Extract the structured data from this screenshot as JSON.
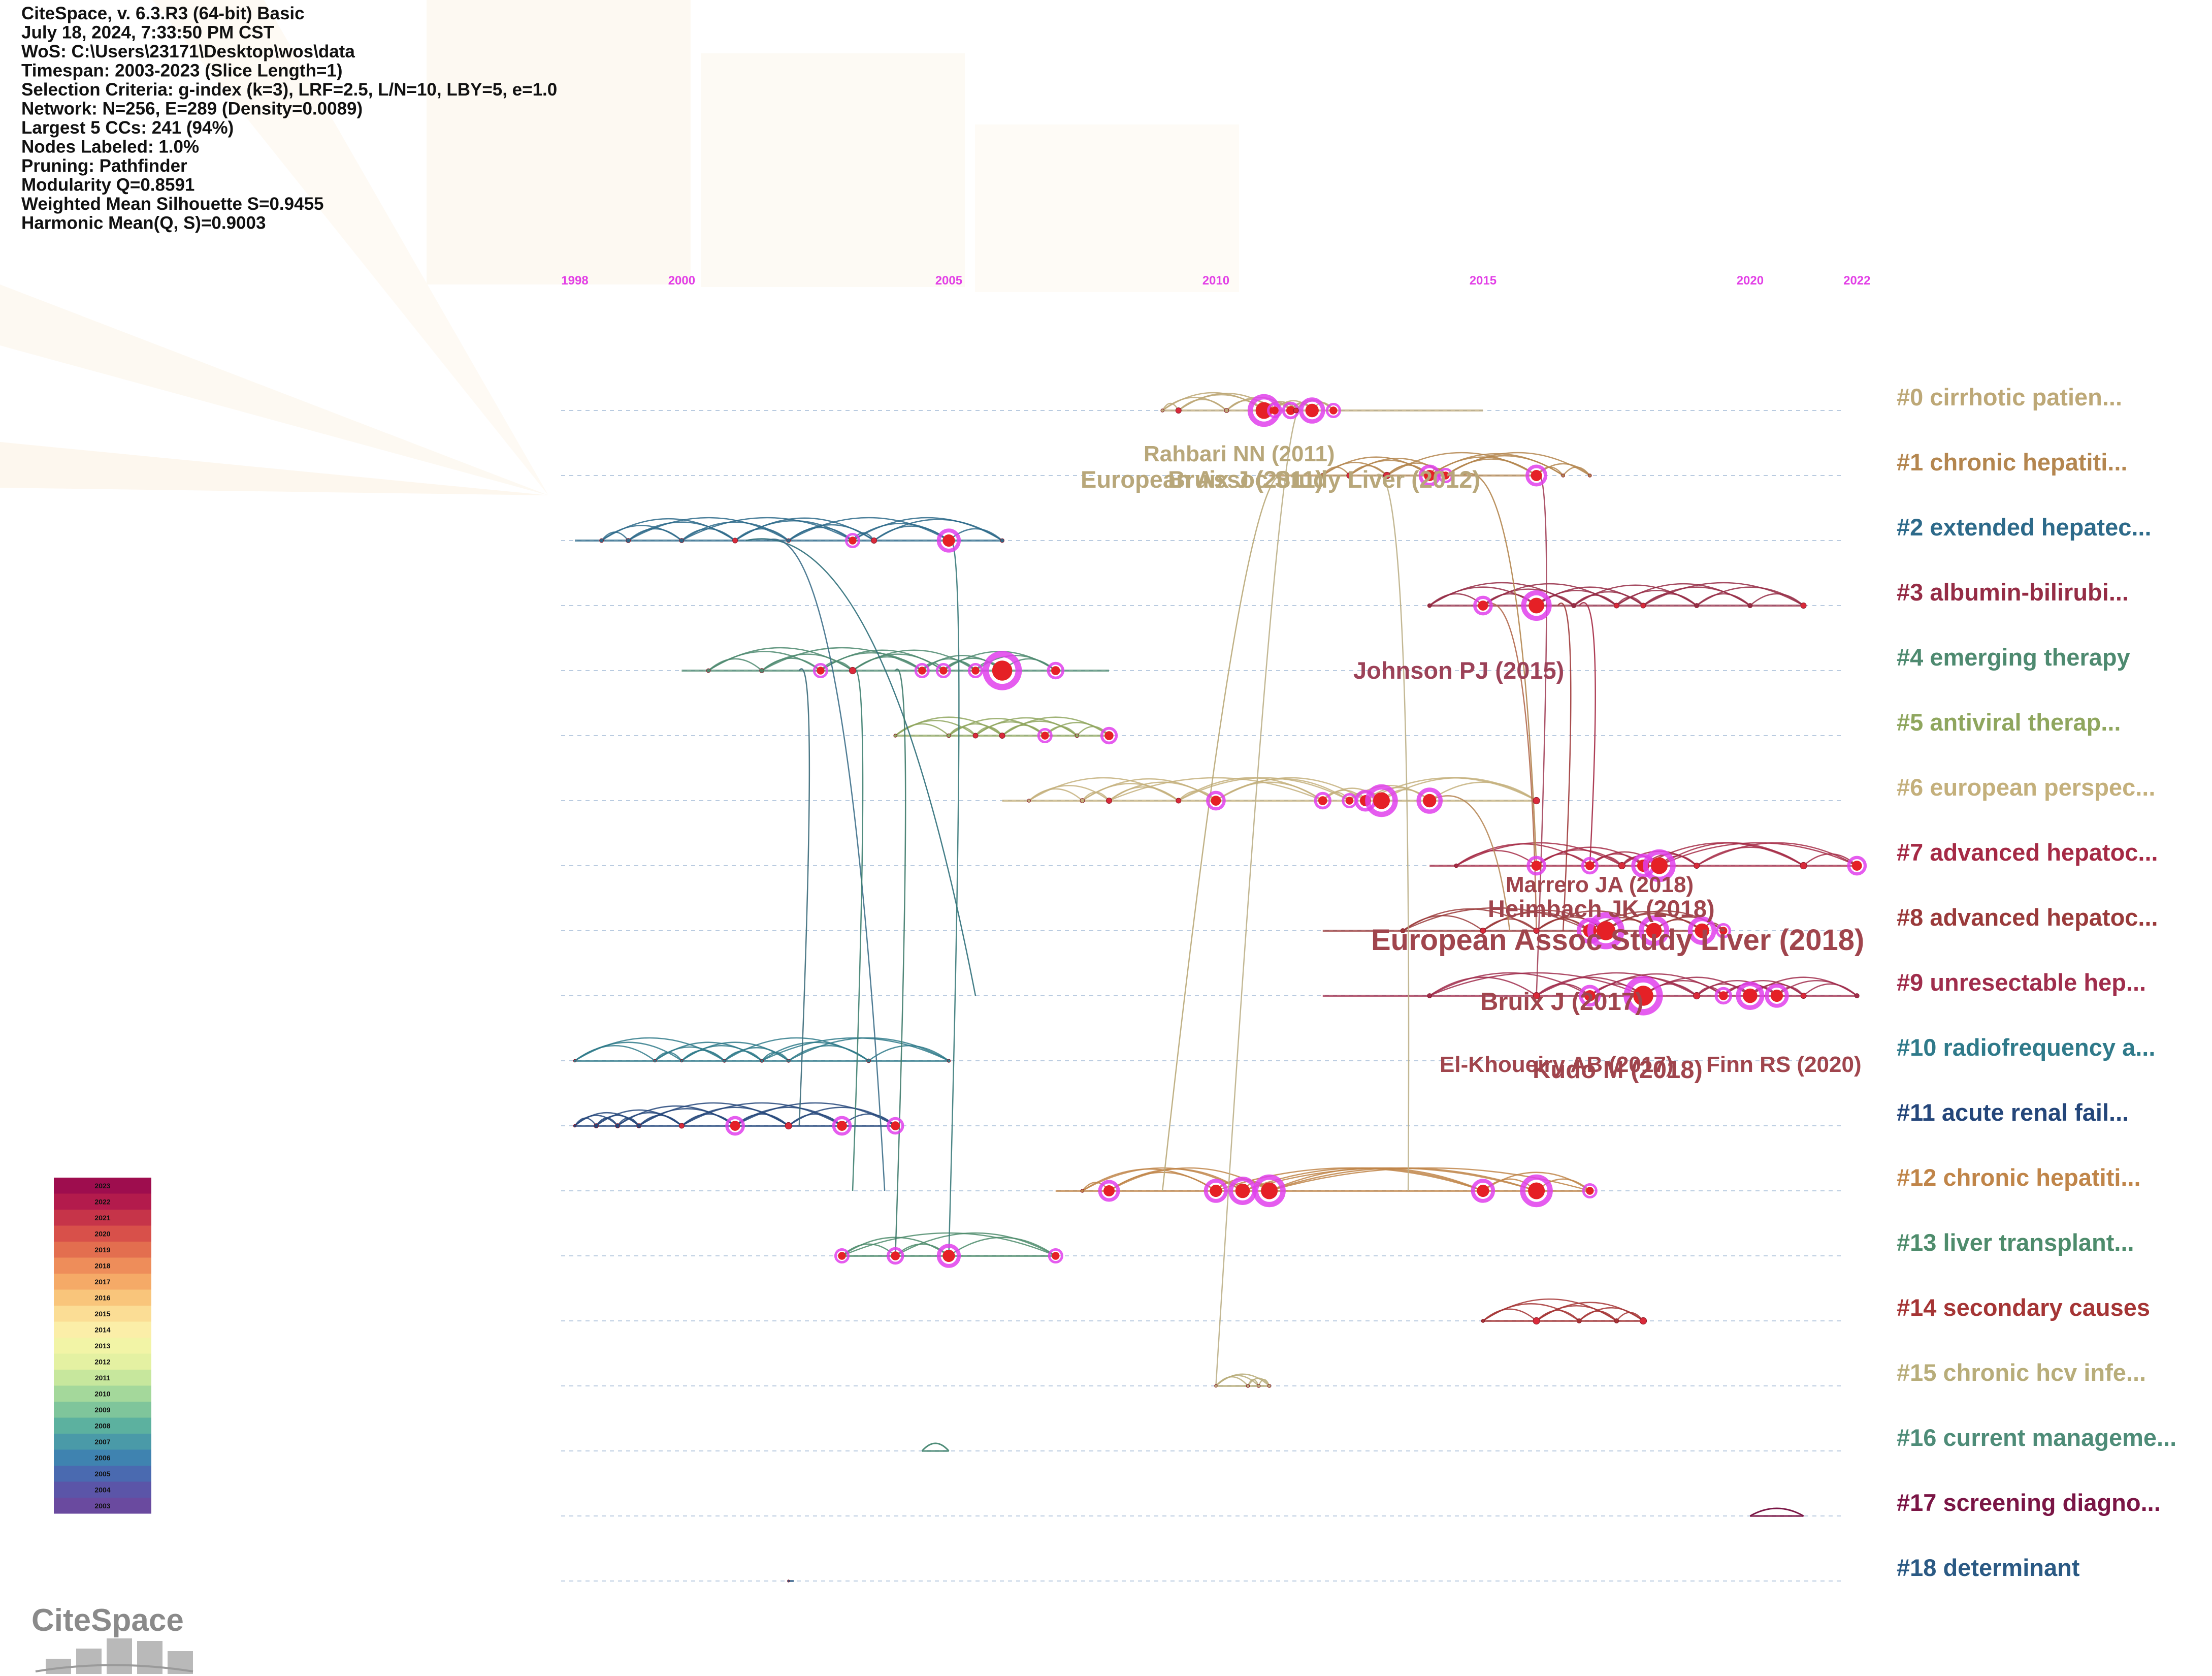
{
  "software_info": [
    "CiteSpace, v. 6.3.R3 (64-bit) Basic",
    "July 18, 2024, 7:33:50 PM CST",
    "WoS: C:\\Users\\23171\\Desktop\\wos\\data",
    "Timespan: 2003-2023 (Slice Length=1)",
    "Selection Criteria: g-index (k=3), LRF=2.5, L/N=10, LBY=5, e=1.0",
    "Network: N=256, E=289 (Density=0.0089)",
    "Largest 5 CCs: 241 (94%)",
    "Nodes Labeled: 1.0%",
    "Pruning: Pathfinder",
    "Modularity Q=0.8591",
    "Weighted Mean Silhouette S=0.9455",
    "Harmonic Mean(Q, S)=0.9003"
  ],
  "logo_text": "CiteSpace",
  "chart_data": {
    "type": "timeline",
    "x_axis": {
      "ticks": [
        1998,
        2000,
        2005,
        2010,
        2015,
        2020,
        2022
      ],
      "range": [
        1998,
        2022
      ]
    },
    "clusters": [
      {
        "label": "#0 cirrhotic patien...",
        "color": "#bda877",
        "span": [
          2009,
          2015
        ],
        "nodes": [
          [
            2009,
            6
          ],
          [
            2009.3,
            10
          ],
          [
            2010.2,
            8
          ],
          [
            2010.9,
            30
          ],
          [
            2011.1,
            14
          ],
          [
            2011.4,
            16
          ],
          [
            2011.5,
            9
          ],
          [
            2011.8,
            24
          ],
          [
            2012.2,
            14
          ]
        ]
      },
      {
        "label": "#1 chronic hepatiti...",
        "color": "#b4864f",
        "span": [
          2011,
          2016
        ],
        "nodes": [
          [
            2012,
            8
          ],
          [
            2012.5,
            10
          ],
          [
            2013.2,
            12
          ],
          [
            2014,
            20
          ],
          [
            2014.3,
            14
          ],
          [
            2016,
            20
          ],
          [
            2016.5,
            6
          ],
          [
            2017,
            6
          ]
        ]
      },
      {
        "label": "#2 extended hepatec...",
        "color": "#2d6a8a",
        "span": [
          1998,
          2006
        ],
        "nodes": [
          [
            1998.5,
            7
          ],
          [
            1999,
            8
          ],
          [
            2000,
            8
          ],
          [
            2001,
            9
          ],
          [
            2002,
            7
          ],
          [
            2003.2,
            14
          ],
          [
            2003.6,
            10
          ],
          [
            2005,
            22
          ],
          [
            2006,
            7
          ]
        ]
      },
      {
        "label": "#3 albumin-bilirubi...",
        "color": "#952c45",
        "span": [
          2014,
          2021
        ],
        "nodes": [
          [
            2014,
            7
          ],
          [
            2015,
            18
          ],
          [
            2016,
            28
          ],
          [
            2016.7,
            8
          ],
          [
            2017.5,
            9
          ],
          [
            2018,
            9
          ],
          [
            2019,
            8
          ],
          [
            2020,
            8
          ],
          [
            2021,
            10
          ]
        ]
      },
      {
        "label": "#4 emerging therapy",
        "color": "#4e8a70",
        "span": [
          2000,
          2008
        ],
        "nodes": [
          [
            2000.5,
            7
          ],
          [
            2001.5,
            8
          ],
          [
            2002.6,
            14
          ],
          [
            2003.2,
            12
          ],
          [
            2004.5,
            14
          ],
          [
            2004.9,
            14
          ],
          [
            2005.5,
            14
          ],
          [
            2006,
            36
          ],
          [
            2007,
            16
          ]
        ]
      },
      {
        "label": "#5 antiviral therap...",
        "color": "#8fa65e",
        "span": [
          2004,
          2008
        ],
        "nodes": [
          [
            2004,
            6
          ],
          [
            2005,
            7
          ],
          [
            2005.5,
            9
          ],
          [
            2006,
            10
          ],
          [
            2006.8,
            14
          ],
          [
            2007.4,
            7
          ],
          [
            2008,
            16
          ]
        ]
      },
      {
        "label": "#6 european perspec...",
        "color": "#c4b07c",
        "span": [
          2006,
          2016
        ],
        "nodes": [
          [
            2006.5,
            6
          ],
          [
            2007.5,
            8
          ],
          [
            2008,
            10
          ],
          [
            2009.3,
            9
          ],
          [
            2010,
            18
          ],
          [
            2012,
            16
          ],
          [
            2012.5,
            14
          ],
          [
            2012.8,
            20
          ],
          [
            2013.1,
            30
          ],
          [
            2014,
            24
          ],
          [
            2016,
            12
          ]
        ]
      },
      {
        "label": "#7 advanced hepatoc...",
        "color": "#a52a45",
        "span": [
          2014,
          2022
        ],
        "nodes": [
          [
            2014.5,
            7
          ],
          [
            2016,
            18
          ],
          [
            2017,
            16
          ],
          [
            2017.6,
            12
          ],
          [
            2018,
            22
          ],
          [
            2018.3,
            30
          ],
          [
            2019,
            10
          ],
          [
            2021,
            12
          ],
          [
            2022,
            18
          ]
        ]
      },
      {
        "label": "#8 advanced hepatoc...",
        "color": "#9a3a3a",
        "span": [
          2012,
          2019
        ],
        "nodes": [
          [
            2013.5,
            8
          ],
          [
            2015,
            10
          ],
          [
            2016,
            10
          ],
          [
            2017,
            24
          ],
          [
            2017.3,
            34
          ],
          [
            2018.2,
            28
          ],
          [
            2019.1,
            26
          ],
          [
            2019.5,
            14
          ]
        ]
      },
      {
        "label": "#9 unresectable hep...",
        "color": "#a02d4c",
        "span": [
          2012,
          2022
        ],
        "nodes": [
          [
            2014,
            8
          ],
          [
            2016,
            12
          ],
          [
            2017,
            20
          ],
          [
            2018,
            36
          ],
          [
            2019,
            12
          ],
          [
            2019.5,
            16
          ],
          [
            2020,
            26
          ],
          [
            2020.5,
            22
          ],
          [
            2021,
            10
          ],
          [
            2022,
            8
          ]
        ]
      },
      {
        "label": "#10 radiofrequency a...",
        "color": "#2f7a8a",
        "span": [
          1998,
          2005
        ],
        "nodes": [
          [
            1998,
            5
          ],
          [
            1999.5,
            5
          ],
          [
            2000,
            5
          ],
          [
            2000.8,
            6
          ],
          [
            2001.5,
            6
          ],
          [
            2002,
            6
          ],
          [
            2003.5,
            7
          ],
          [
            2005,
            6
          ]
        ]
      },
      {
        "label": "#11 acute renal fail...",
        "color": "#24467a",
        "span": [
          1998,
          2004
        ],
        "nodes": [
          [
            1998,
            5
          ],
          [
            1998.4,
            8
          ],
          [
            1998.8,
            8
          ],
          [
            1999.2,
            8
          ],
          [
            2000,
            9
          ],
          [
            2001,
            18
          ],
          [
            2002,
            12
          ],
          [
            2003,
            18
          ],
          [
            2004,
            16
          ]
        ]
      },
      {
        "label": "#12 chronic hepatiti...",
        "color": "#c08549",
        "span": [
          2007,
          2017
        ],
        "nodes": [
          [
            2007.5,
            6
          ],
          [
            2008,
            20
          ],
          [
            2010,
            22
          ],
          [
            2010.5,
            26
          ],
          [
            2011,
            30
          ],
          [
            2015,
            22
          ],
          [
            2016,
            30
          ],
          [
            2017,
            14
          ]
        ]
      },
      {
        "label": "#13 liver transplant...",
        "color": "#4e8c6c",
        "span": [
          2003,
          2007
        ],
        "nodes": [
          [
            2003,
            14
          ],
          [
            2004,
            16
          ],
          [
            2005,
            22
          ],
          [
            2007,
            14
          ]
        ]
      },
      {
        "label": "#14 secondary causes",
        "color": "#a53535",
        "span": [
          2015,
          2018
        ],
        "nodes": [
          [
            2015,
            6
          ],
          [
            2016,
            12
          ],
          [
            2016.8,
            8
          ],
          [
            2017.5,
            8
          ],
          [
            2018,
            12
          ]
        ]
      },
      {
        "label": "#15 chronic hcv infe...",
        "color": "#b8ad7a",
        "span": [
          2010,
          2011
        ],
        "nodes": [
          [
            2010,
            5
          ],
          [
            2010.6,
            6
          ],
          [
            2010.8,
            6
          ],
          [
            2011,
            6
          ]
        ]
      },
      {
        "label": "#16 current manageme...",
        "color": "#4e8c78",
        "span": [
          2004.5,
          2005
        ],
        "nodes": []
      },
      {
        "label": "#17 screening diagno...",
        "color": "#7a1545",
        "span": [
          2020,
          2021
        ],
        "nodes": []
      },
      {
        "label": "#18 determinant",
        "color": "#2b5a84",
        "span": [
          2002,
          2002.1
        ],
        "nodes": [
          [
            2002,
            4
          ]
        ]
      }
    ],
    "node_labels": [
      {
        "text": "Rahbari NN (2011)",
        "color": "#b8a77a",
        "size": 44
      },
      {
        "text": "European Assoc Study Liver (2012)",
        "color": "#b8a77a",
        "size": 47
      },
      {
        "text": "Bruix J (2011)",
        "color": "#b8a77a",
        "size": 47
      },
      {
        "text": "Johnson PJ (2015)",
        "color": "#9c4258",
        "size": 47
      },
      {
        "text": "Marrero JA (2018)",
        "color": "#a0454d",
        "size": 44
      },
      {
        "text": "Heimbach JK (2018)",
        "color": "#a0454d",
        "size": 47
      },
      {
        "text": "European Assoc Study Liver (2018)",
        "color": "#a0454d",
        "size": 58
      },
      {
        "text": "Bruix J (2017)",
        "color": "#a0454d",
        "size": 49
      },
      {
        "text": "El-Khoueiry AB (2017)",
        "color": "#a0454d",
        "size": 44
      },
      {
        "text": "Finn RS (2020)",
        "color": "#a0454d",
        "size": 44
      },
      {
        "text": "Kudo M (2018)",
        "color": "#a0454d",
        "size": 49
      }
    ],
    "legend": {
      "years": [
        2023,
        2022,
        2021,
        2020,
        2019,
        2018,
        2017,
        2016,
        2015,
        2014,
        2013,
        2012,
        2011,
        2010,
        2009,
        2008,
        2007,
        2006,
        2005,
        2004,
        2003
      ],
      "colors": [
        "#9e0d4e",
        "#b31b4c",
        "#c63449",
        "#d8504a",
        "#e36e4f",
        "#ee8d5a",
        "#f5aa67",
        "#f9c57b",
        "#fbdd95",
        "#fbeea8",
        "#f2f4a6",
        "#e4f1a2",
        "#c7e79d",
        "#a4d89b",
        "#7fc59b",
        "#5cb19f",
        "#4a9aa8",
        "#3f83b0",
        "#4a6ab0",
        "#5b55a8",
        "#6a4a9f"
      ]
    }
  }
}
